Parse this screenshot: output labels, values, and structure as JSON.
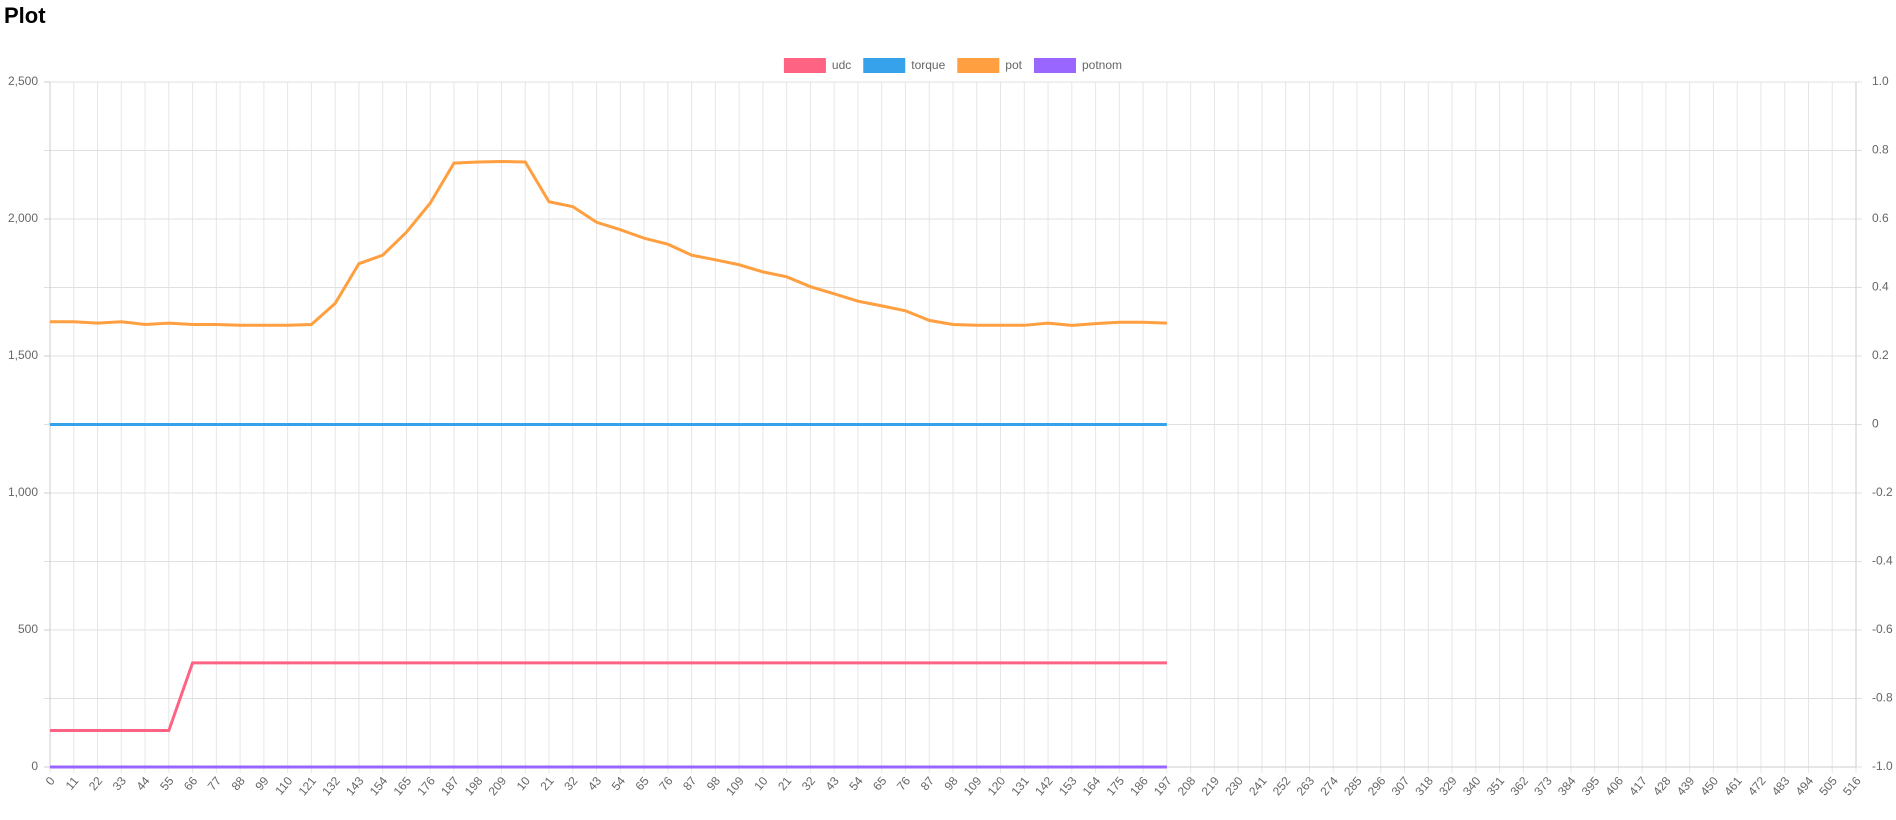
{
  "chart_data": {
    "type": "line",
    "title": "Plot",
    "categories": [
      "0",
      "11",
      "22",
      "33",
      "44",
      "55",
      "66",
      "77",
      "88",
      "99",
      "110",
      "121",
      "132",
      "143",
      "154",
      "165",
      "176",
      "187",
      "198",
      "209",
      "10",
      "21",
      "32",
      "43",
      "54",
      "65",
      "76",
      "87",
      "98",
      "109",
      "10",
      "21",
      "32",
      "43",
      "54",
      "65",
      "76",
      "87",
      "98",
      "109",
      "120",
      "131",
      "142",
      "153",
      "164",
      "175",
      "186",
      "197",
      "208",
      "219",
      "230",
      "241",
      "252",
      "263",
      "274",
      "285",
      "296",
      "307",
      "318",
      "329",
      "340",
      "351",
      "362",
      "373",
      "384",
      "395",
      "406",
      "417",
      "428",
      "439",
      "450",
      "461",
      "472",
      "483",
      "494",
      "505",
      "516"
    ],
    "series": [
      {
        "name": "udc",
        "color": "#ff6384",
        "values": [
          133,
          133,
          133,
          133,
          133,
          133,
          380,
          380,
          380,
          380,
          380,
          380,
          380,
          380,
          380,
          380,
          380,
          380,
          380,
          380,
          380,
          380,
          380,
          380,
          380,
          380,
          380,
          380,
          380,
          380,
          380,
          380,
          380,
          380,
          380,
          380,
          380,
          380,
          380,
          380,
          380,
          380,
          380,
          380,
          380,
          380,
          380,
          380,
          null,
          null,
          null,
          null,
          null,
          null,
          null,
          null,
          null,
          null,
          null,
          null,
          null,
          null,
          null,
          null,
          null,
          null,
          null,
          null,
          null,
          null,
          null,
          null,
          null,
          null,
          null,
          null,
          null
        ]
      },
      {
        "name": "torque",
        "color": "#36a2eb",
        "axis": "y2",
        "values": [
          0,
          0,
          0,
          0,
          0,
          0,
          0,
          0,
          0,
          0,
          0,
          0,
          0,
          0,
          0,
          0,
          0,
          0,
          0,
          0,
          0,
          0,
          0,
          0,
          0,
          0,
          0,
          0,
          0,
          0,
          0,
          0,
          0,
          0,
          0,
          0,
          0,
          0,
          0,
          0,
          0,
          0,
          0,
          0,
          0,
          0,
          0,
          0,
          null,
          null,
          null,
          null,
          null,
          null,
          null,
          null,
          null,
          null,
          null,
          null,
          null,
          null,
          null,
          null,
          null,
          null,
          null,
          null,
          null,
          null,
          null,
          null,
          null,
          null,
          null,
          null,
          null
        ]
      },
      {
        "name": "pot",
        "color": "#ff9f40",
        "values": [
          1625,
          1625,
          1620,
          1625,
          1615,
          1620,
          1615,
          1615,
          1612,
          1612,
          1612,
          1615,
          1692,
          1837,
          1868,
          1952,
          2058,
          2204,
          2208,
          2210,
          2208,
          2063,
          2045,
          1988,
          1961,
          1930,
          1908,
          1868,
          1851,
          1833,
          1807,
          1789,
          1753,
          1727,
          1700,
          1683,
          1665,
          1630,
          1615,
          1612,
          1612,
          1612,
          1620,
          1612,
          1618,
          1623,
          1623,
          1620,
          null,
          null,
          null,
          null,
          null,
          null,
          null,
          null,
          null,
          null,
          null,
          null,
          null,
          null,
          null,
          null,
          null,
          null,
          null,
          null,
          null,
          null,
          null,
          null,
          null,
          null,
          null,
          null,
          null
        ]
      },
      {
        "name": "potnom",
        "color": "#9966ff",
        "values": [
          0,
          0,
          0,
          0,
          0,
          0,
          0,
          0,
          0,
          0,
          0,
          0,
          0,
          0,
          0,
          0,
          0,
          0,
          0,
          0,
          0,
          0,
          0,
          0,
          0,
          0,
          0,
          0,
          0,
          0,
          0,
          0,
          0,
          0,
          0,
          0,
          0,
          0,
          0,
          0,
          0,
          0,
          0,
          0,
          0,
          0,
          0,
          0,
          null,
          null,
          null,
          null,
          null,
          null,
          null,
          null,
          null,
          null,
          null,
          null,
          null,
          null,
          null,
          null,
          null,
          null,
          null,
          null,
          null,
          null,
          null,
          null,
          null,
          null,
          null,
          null,
          null
        ]
      }
    ],
    "ylim": [
      0,
      2500
    ],
    "yticks": [
      0,
      500,
      {
        "value": 1000,
        "label": "1,000"
      },
      {
        "value": 1500,
        "label": "1,500"
      },
      {
        "value": 2000,
        "label": "2,000"
      },
      {
        "value": 2500,
        "label": "2,500"
      }
    ],
    "y2lim": [
      -1,
      1
    ],
    "y2ticks": [
      {
        "value": -1,
        "label": "-1.0"
      },
      -0.8,
      -0.6,
      -0.4,
      -0.2,
      0,
      0.2,
      0.4,
      0.6,
      0.8,
      {
        "value": 1,
        "label": "1.0"
      }
    ],
    "grid": true,
    "legend": "top"
  }
}
